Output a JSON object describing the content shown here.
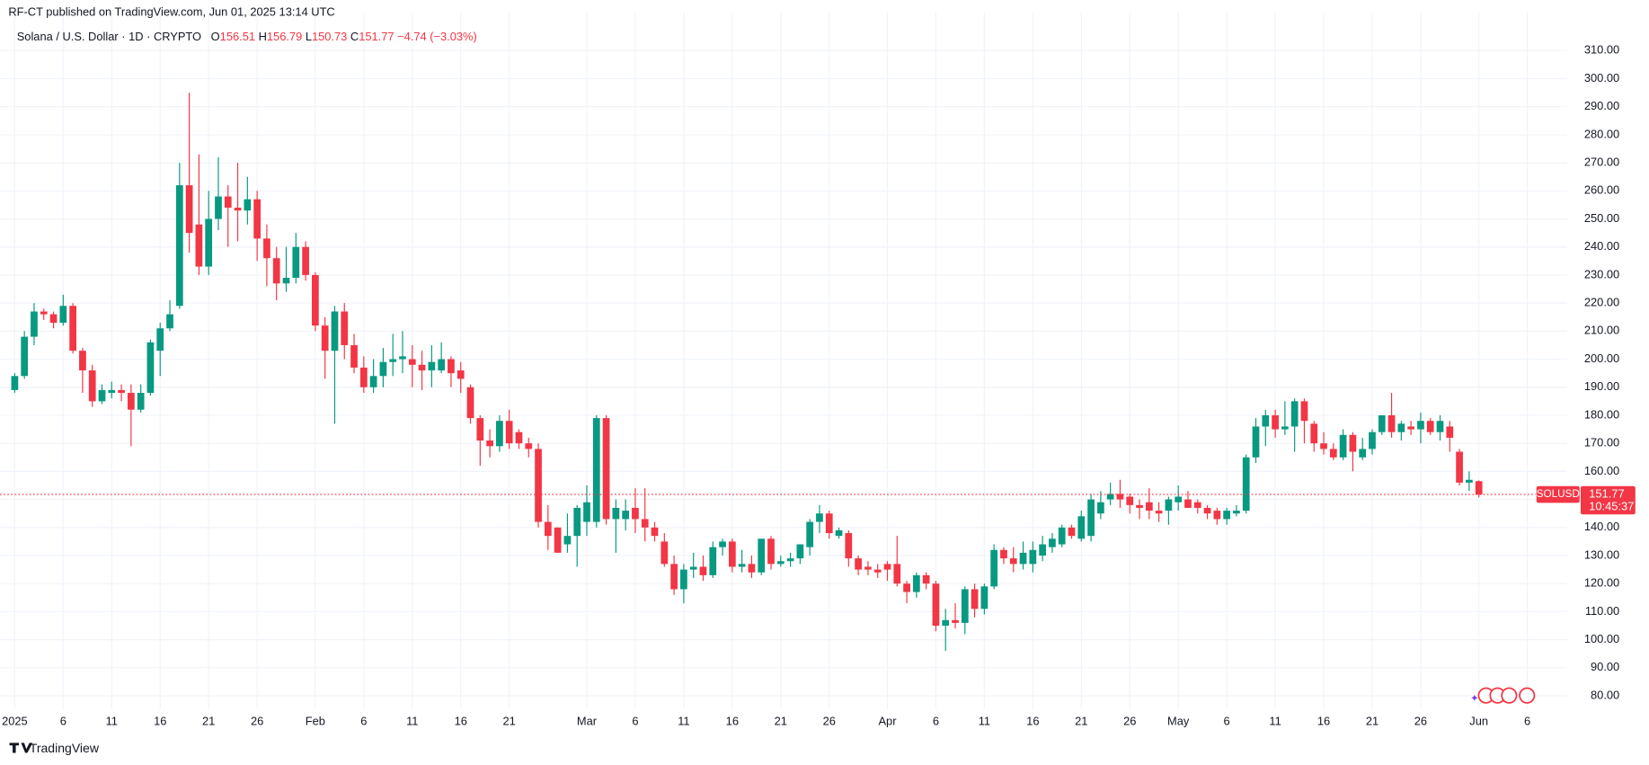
{
  "chart_data": {
    "type": "candlestick",
    "caption": "RF-CT published on TradingView.com, Jun 01, 2025 13:14 UTC",
    "title": "Solana / U.S. Dollar · 1D · CRYPTO",
    "ohlc_labels": [
      "O",
      "H",
      "L",
      "C"
    ],
    "change": "−4.74 (−3.03%)",
    "symbol": "SOLUSD",
    "countdown": "10:45:37",
    "brand": "TradingView",
    "up_color": "#089981",
    "down_color": "#f23645",
    "grid": true,
    "x": [
      "2025-01-01",
      "2025-01-02",
      "2025-01-03",
      "2025-01-04",
      "2025-01-05",
      "2025-01-06",
      "2025-01-07",
      "2025-01-08",
      "2025-01-09",
      "2025-01-10",
      "2025-01-11",
      "2025-01-12",
      "2025-01-13",
      "2025-01-14",
      "2025-01-15",
      "2025-01-16",
      "2025-01-17",
      "2025-01-18",
      "2025-01-19",
      "2025-01-20",
      "2025-01-21",
      "2025-01-22",
      "2025-01-23",
      "2025-01-24",
      "2025-01-25",
      "2025-01-26",
      "2025-01-27",
      "2025-01-28",
      "2025-01-29",
      "2025-01-30",
      "2025-01-31",
      "2025-02-01",
      "2025-02-02",
      "2025-02-03",
      "2025-02-04",
      "2025-02-05",
      "2025-02-06",
      "2025-02-07",
      "2025-02-08",
      "2025-02-09",
      "2025-02-10",
      "2025-02-11",
      "2025-02-12",
      "2025-02-13",
      "2025-02-14",
      "2025-02-15",
      "2025-02-16",
      "2025-02-17",
      "2025-02-18",
      "2025-02-19",
      "2025-02-20",
      "2025-02-21",
      "2025-02-22",
      "2025-02-23",
      "2025-02-24",
      "2025-02-25",
      "2025-02-26",
      "2025-02-27",
      "2025-02-28",
      "2025-03-01",
      "2025-03-02",
      "2025-03-03",
      "2025-03-04",
      "2025-03-05",
      "2025-03-06",
      "2025-03-07",
      "2025-03-08",
      "2025-03-09",
      "2025-03-10",
      "2025-03-11",
      "2025-03-12",
      "2025-03-13",
      "2025-03-14",
      "2025-03-15",
      "2025-03-16",
      "2025-03-17",
      "2025-03-18",
      "2025-03-19",
      "2025-03-20",
      "2025-03-21",
      "2025-03-22",
      "2025-03-23",
      "2025-03-24",
      "2025-03-25",
      "2025-03-26",
      "2025-03-27",
      "2025-03-28",
      "2025-03-29",
      "2025-03-30",
      "2025-03-31",
      "2025-04-01",
      "2025-04-02",
      "2025-04-03",
      "2025-04-04",
      "2025-04-05",
      "2025-04-06",
      "2025-04-07",
      "2025-04-08",
      "2025-04-09",
      "2025-04-10",
      "2025-04-11",
      "2025-04-12",
      "2025-04-13",
      "2025-04-14",
      "2025-04-15",
      "2025-04-16",
      "2025-04-17",
      "2025-04-18",
      "2025-04-19",
      "2025-04-20",
      "2025-04-21",
      "2025-04-22",
      "2025-04-23",
      "2025-04-24",
      "2025-04-25",
      "2025-04-26",
      "2025-04-27",
      "2025-04-28",
      "2025-04-29",
      "2025-04-30",
      "2025-05-01",
      "2025-05-02",
      "2025-05-03",
      "2025-05-04",
      "2025-05-05",
      "2025-05-06",
      "2025-05-07",
      "2025-05-08",
      "2025-05-09",
      "2025-05-10",
      "2025-05-11",
      "2025-05-12",
      "2025-05-13",
      "2025-05-14",
      "2025-05-15",
      "2025-05-16",
      "2025-05-17",
      "2025-05-18",
      "2025-05-19",
      "2025-05-20",
      "2025-05-21",
      "2025-05-22",
      "2025-05-23",
      "2025-05-24",
      "2025-05-25",
      "2025-05-26",
      "2025-05-27",
      "2025-05-28",
      "2025-05-29",
      "2025-05-30",
      "2025-05-31",
      "2025-06-01"
    ],
    "open": [
      189,
      194,
      208,
      217,
      216,
      213,
      219,
      203,
      196,
      185,
      188,
      189,
      188,
      182,
      188,
      203,
      211,
      219,
      262,
      248,
      233,
      250,
      258,
      254,
      253,
      257,
      243,
      236,
      227,
      229,
      240,
      230,
      212,
      203,
      217,
      205,
      197,
      190,
      194,
      199,
      200,
      200,
      198,
      196,
      196,
      200,
      196,
      190,
      179,
      171,
      169,
      178,
      174,
      170,
      168,
      142,
      140,
      134,
      137,
      142,
      142,
      179,
      143,
      143,
      147,
      143,
      140,
      135,
      127,
      118,
      125,
      126,
      123,
      133,
      135,
      126,
      127,
      124,
      136,
      127,
      128,
      129,
      133,
      142,
      145,
      137,
      138,
      129,
      126,
      125,
      127,
      127,
      120,
      117,
      123,
      120,
      105,
      107,
      106,
      118,
      111,
      119,
      132,
      129,
      127,
      127,
      130,
      133,
      134,
      140,
      136,
      137,
      145,
      150,
      152,
      151,
      148,
      149,
      146,
      146,
      149,
      150,
      149,
      147,
      146,
      143,
      145,
      146,
      165,
      176,
      180,
      175,
      176,
      185,
      177,
      170,
      168,
      165,
      173,
      165,
      168,
      174,
      180,
      174,
      176,
      175,
      178,
      174,
      176,
      167,
      156,
      156.51
    ],
    "high": [
      195,
      210,
      220,
      218,
      217,
      223,
      220,
      204,
      198,
      191,
      192,
      191,
      191,
      191,
      207,
      213,
      221,
      270,
      295,
      273,
      260,
      272,
      262,
      270,
      265,
      260,
      248,
      240,
      240,
      245,
      242,
      231,
      215,
      219,
      220,
      209,
      201,
      200,
      204,
      209,
      210,
      205,
      203,
      205,
      206,
      201,
      199,
      191,
      180,
      175,
      180,
      182,
      175,
      172,
      170,
      148,
      140,
      145,
      148,
      155,
      180,
      180,
      150,
      150,
      154,
      154,
      142,
      138,
      130,
      127,
      131,
      130,
      135,
      136,
      136,
      132,
      130,
      136,
      137,
      130,
      131,
      134,
      143,
      148,
      146,
      140,
      139,
      130,
      128,
      127,
      128,
      137,
      121,
      124,
      124,
      121,
      111,
      113,
      119,
      120,
      120,
      134,
      133,
      133,
      135,
      135,
      137,
      138,
      141,
      141,
      146,
      152,
      153,
      156,
      157,
      152,
      150,
      154,
      149,
      151,
      155,
      153,
      150,
      148,
      147,
      147,
      148,
      166,
      179,
      182,
      182,
      185,
      186,
      186,
      178,
      174,
      170,
      175,
      174,
      172,
      175,
      180,
      188,
      178,
      178,
      181,
      179,
      180,
      178,
      168,
      160,
      156.79
    ],
    "low": [
      188,
      193,
      205,
      214,
      211,
      212,
      202,
      188,
      183,
      184,
      186,
      185,
      169,
      181,
      187,
      194,
      210,
      218,
      238,
      230,
      230,
      246,
      240,
      242,
      248,
      235,
      226,
      221,
      224,
      227,
      228,
      210,
      193,
      177,
      200,
      195,
      188,
      188,
      190,
      194,
      195,
      190,
      189,
      190,
      195,
      190,
      188,
      177,
      162,
      165,
      167,
      168,
      168,
      165,
      140,
      132,
      131,
      131,
      126,
      137,
      140,
      141,
      131,
      139,
      138,
      135,
      135,
      126,
      116,
      113,
      122,
      121,
      122,
      130,
      124,
      124,
      122,
      123,
      125,
      126,
      126,
      127,
      130,
      138,
      136,
      136,
      126,
      123,
      123,
      122,
      121,
      119,
      113,
      115,
      118,
      103,
      96,
      104,
      102,
      108,
      109,
      118,
      127,
      124,
      125,
      124,
      128,
      131,
      133,
      136,
      135,
      135,
      143,
      148,
      147,
      145,
      143,
      143,
      142,
      141,
      146,
      147,
      145,
      143,
      141,
      141,
      144,
      145,
      163,
      169,
      172,
      173,
      167,
      170,
      167,
      166,
      164,
      164,
      160,
      164,
      166,
      173,
      172,
      171,
      173,
      170,
      173,
      171,
      167,
      155,
      153,
      150.73
    ],
    "close": [
      194,
      208,
      217,
      216,
      213,
      219,
      203,
      196,
      185,
      189,
      189,
      188,
      182,
      188,
      206,
      211,
      216,
      262,
      245,
      233,
      250,
      258,
      254,
      253,
      257,
      243,
      236,
      227,
      229,
      240,
      230,
      212,
      203,
      217,
      205,
      197,
      190,
      194,
      199,
      200,
      201,
      198,
      196,
      199,
      200,
      195,
      193,
      179,
      171,
      169,
      178,
      170,
      170,
      168,
      142,
      137,
      131,
      137,
      147,
      149,
      179,
      143,
      147,
      146,
      143,
      140,
      137,
      127,
      118,
      125,
      126,
      123,
      133,
      135,
      126,
      127,
      124,
      136,
      127,
      128,
      129,
      134,
      142,
      145,
      138,
      139,
      129,
      125,
      125,
      124,
      125,
      120,
      117,
      123,
      120,
      105,
      107,
      106,
      118,
      111,
      119,
      132,
      129,
      127,
      131,
      132,
      134,
      136,
      140,
      137,
      144,
      150,
      149,
      152,
      150,
      148,
      147,
      146,
      145,
      150,
      151,
      147,
      147,
      145,
      143,
      146,
      146,
      165,
      176,
      180,
      175,
      176,
      185,
      178,
      170,
      168,
      165,
      173,
      167,
      168,
      174,
      180,
      174,
      177,
      175,
      178,
      174,
      178,
      172,
      156,
      157,
      151.77
    ],
    "ylim": [
      73,
      316
    ],
    "yticks": [
      {
        "value": 80,
        "label": "80.00"
      },
      {
        "value": 90,
        "label": "90.00"
      },
      {
        "value": 100,
        "label": "100.00"
      },
      {
        "value": 110,
        "label": "110.00"
      },
      {
        "value": 120,
        "label": "120.00"
      },
      {
        "value": 130,
        "label": "130.00"
      },
      {
        "value": 140,
        "label": "140.00"
      },
      {
        "value": 150,
        "label": "150.00"
      },
      {
        "value": 160,
        "label": "160.00"
      },
      {
        "value": 170,
        "label": "170.00"
      },
      {
        "value": 180,
        "label": "180.00"
      },
      {
        "value": 190,
        "label": "190.00"
      },
      {
        "value": 200,
        "label": "200.00"
      },
      {
        "value": 210,
        "label": "210.00"
      },
      {
        "value": 220,
        "label": "220.00"
      },
      {
        "value": 230,
        "label": "230.00"
      },
      {
        "value": 240,
        "label": "240.00"
      },
      {
        "value": 250,
        "label": "250.00"
      },
      {
        "value": 260,
        "label": "260.00"
      },
      {
        "value": 270,
        "label": "270.00"
      },
      {
        "value": 280,
        "label": "280.00"
      },
      {
        "value": 290,
        "label": "290.00"
      },
      {
        "value": 300,
        "label": "300.00"
      },
      {
        "value": 310,
        "label": "310.00"
      }
    ],
    "xticks": [
      {
        "value": "2025-01-01",
        "label": "2025"
      },
      {
        "value": "2025-01-06",
        "label": "6"
      },
      {
        "value": "2025-01-11",
        "label": "11"
      },
      {
        "value": "2025-01-16",
        "label": "16"
      },
      {
        "value": "2025-01-21",
        "label": "21"
      },
      {
        "value": "2025-01-26",
        "label": "26"
      },
      {
        "value": "2025-02-01",
        "label": "Feb"
      },
      {
        "value": "2025-02-06",
        "label": "6"
      },
      {
        "value": "2025-02-11",
        "label": "11"
      },
      {
        "value": "2025-02-16",
        "label": "16"
      },
      {
        "value": "2025-02-21",
        "label": "21"
      },
      {
        "value": "2025-03-01",
        "label": "Mar"
      },
      {
        "value": "2025-03-06",
        "label": "6"
      },
      {
        "value": "2025-03-11",
        "label": "11"
      },
      {
        "value": "2025-03-16",
        "label": "16"
      },
      {
        "value": "2025-03-21",
        "label": "21"
      },
      {
        "value": "2025-03-26",
        "label": "26"
      },
      {
        "value": "2025-04-01",
        "label": "Apr"
      },
      {
        "value": "2025-04-06",
        "label": "6"
      },
      {
        "value": "2025-04-11",
        "label": "11"
      },
      {
        "value": "2025-04-16",
        "label": "16"
      },
      {
        "value": "2025-04-21",
        "label": "21"
      },
      {
        "value": "2025-04-26",
        "label": "26"
      },
      {
        "value": "2025-05-01",
        "label": "May"
      },
      {
        "value": "2025-05-06",
        "label": "6"
      },
      {
        "value": "2025-05-11",
        "label": "11"
      },
      {
        "value": "2025-05-16",
        "label": "16"
      },
      {
        "value": "2025-05-21",
        "label": "21"
      },
      {
        "value": "2025-05-26",
        "label": "26"
      },
      {
        "value": "2025-06-01",
        "label": "Jun"
      },
      {
        "value": "2025-06-06",
        "label": "6"
      }
    ]
  }
}
